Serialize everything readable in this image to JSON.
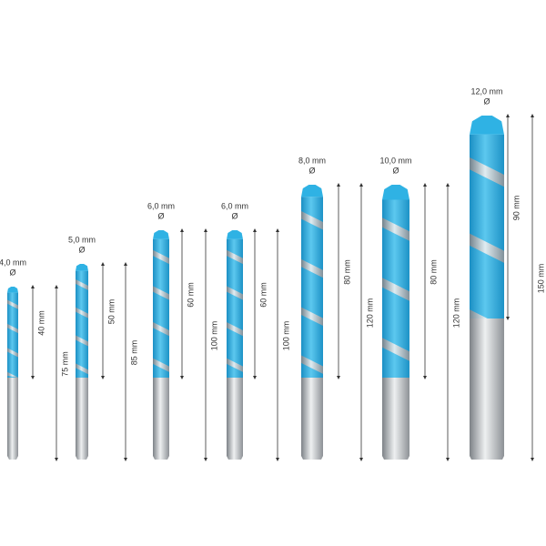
{
  "bits": [
    {
      "diameter": "4,0 mm",
      "symbol": "Ø",
      "flute_length": "40 mm",
      "total_length": "75 mm"
    },
    {
      "diameter": "5,0 mm",
      "symbol": "Ø",
      "flute_length": "50 mm",
      "total_length": "85 mm"
    },
    {
      "diameter": "6,0 mm",
      "symbol": "Ø",
      "flute_length": "60 mm",
      "total_length": "100 mm"
    },
    {
      "diameter": "6,0 mm",
      "symbol": "Ø",
      "flute_length": "60 mm",
      "total_length": "100 mm"
    },
    {
      "diameter": "8,0 mm",
      "symbol": "Ø",
      "flute_length": "80 mm",
      "total_length": "120 mm"
    },
    {
      "diameter": "10,0 mm",
      "symbol": "Ø",
      "flute_length": "80 mm",
      "total_length": "120 mm"
    },
    {
      "diameter": "12,0 mm",
      "symbol": "Ø",
      "flute_length": "90 mm",
      "total_length": "150 mm"
    }
  ]
}
